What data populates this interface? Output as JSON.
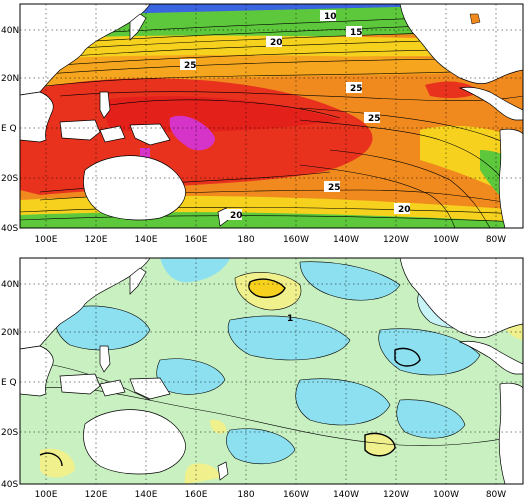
{
  "maps": [
    {
      "id": "top",
      "lat_ticks": [
        "40N",
        "20N",
        "E Q",
        "20S",
        "40S"
      ],
      "lon_ticks": [
        "100E",
        "120E",
        "140E",
        "160E",
        "180",
        "160W",
        "140W",
        "120W",
        "100W",
        "80W"
      ],
      "contour_labels": [
        "10",
        "15",
        "20",
        "25",
        "25",
        "25",
        "25",
        "20",
        "20"
      ],
      "colors": {
        "warm": "#e8321e",
        "hot": "#d633c8",
        "orange": "#f08a1e",
        "yellow": "#f6d21e",
        "green": "#5ec83c",
        "blue": "#3a64e0",
        "land": "#ffffff"
      }
    },
    {
      "id": "bottom",
      "lat_ticks": [
        "40N",
        "20N",
        "E Q",
        "20S",
        "40S"
      ],
      "lon_ticks": [
        "100E",
        "120E",
        "140E",
        "160E",
        "180",
        "160W",
        "140W",
        "120W",
        "100W",
        "80W"
      ],
      "contour_labels": [
        "1"
      ],
      "colors": {
        "light_green": "#c8f0c0",
        "cyan": "#8ce0f0",
        "light_cyan": "#c8f4f8",
        "yellow": "#f0f08c",
        "land": "#ffffff"
      }
    }
  ]
}
